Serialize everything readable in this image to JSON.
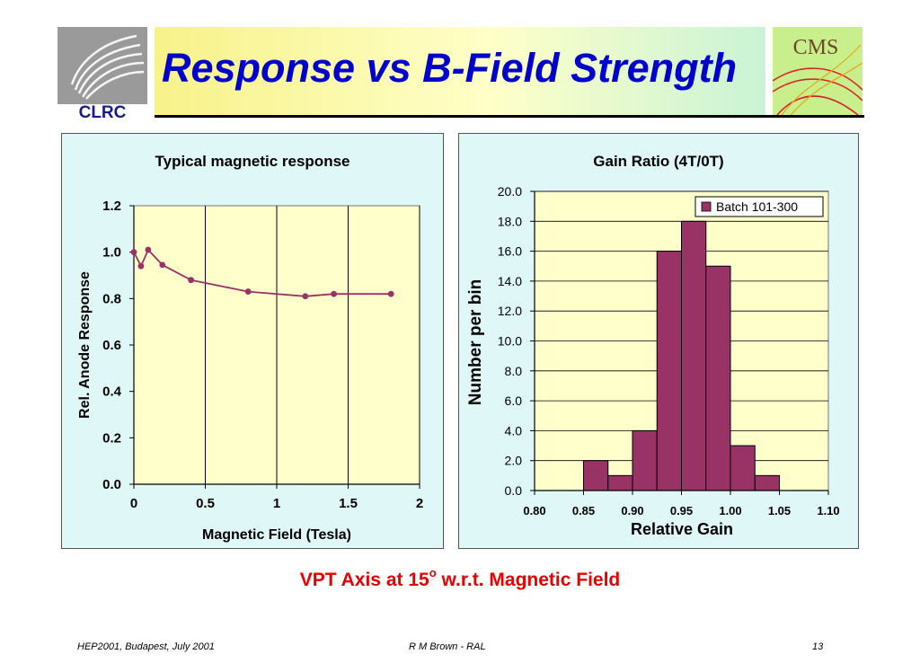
{
  "header": {
    "title": "Response vs B-Field Strength",
    "logo_left_text": "CLRC",
    "logo_right_text": "CMS",
    "colors": {
      "title": "#0000cc",
      "logo_left": "#1a1a8c",
      "logo_right_bg": "#c9ee8c"
    }
  },
  "caption": {
    "main": "VPT Axis at 15",
    "superscript": "o",
    "tail": " w.r.t. Magnetic Field"
  },
  "footer": {
    "left": "HEP2001, Budapest, July 2001",
    "center": "R M Brown - RAL",
    "right": "13"
  },
  "chart_data": [
    {
      "type": "line",
      "title": "Typical magnetic response",
      "xlabel": "Magnetic Field (Tesla)",
      "ylabel": "Rel. Anode Response",
      "x": [
        0,
        0.05,
        0.1,
        0.2,
        0.4,
        0.8,
        1.2,
        1.4,
        1.8
      ],
      "y": [
        1.0,
        0.94,
        1.01,
        0.945,
        0.88,
        0.83,
        0.81,
        0.82,
        0.82
      ],
      "xlim": [
        0,
        2
      ],
      "ylim": [
        0,
        1.2
      ],
      "x_ticks": [
        "0",
        "0.5",
        "1",
        "1.5",
        "2"
      ],
      "y_ticks": [
        "0.0",
        "0.2",
        "0.4",
        "0.6",
        "0.8",
        "1.0",
        "1.2"
      ],
      "grid": "vertical",
      "color": "#993366",
      "plot_bg": "#ffffcc"
    },
    {
      "type": "bar",
      "title": "Gain Ratio (4T/0T)",
      "xlabel": "Relative Gain",
      "ylabel": "Number per bin",
      "bin_edges": [
        0.8,
        0.825,
        0.85,
        0.875,
        0.9,
        0.925,
        0.95,
        0.975,
        1.0,
        1.025,
        1.05,
        1.075,
        1.1
      ],
      "values": [
        0,
        0,
        2,
        1,
        4,
        16,
        18,
        15,
        3,
        1,
        0,
        0
      ],
      "xlim": [
        0.8,
        1.1
      ],
      "ylim": [
        0,
        20
      ],
      "x_ticks": [
        "0.80",
        "0.85",
        "0.90",
        "0.95",
        "1.00",
        "1.05",
        "1.10"
      ],
      "y_ticks": [
        "0.0",
        "2.0",
        "4.0",
        "6.0",
        "8.0",
        "10.0",
        "12.0",
        "14.0",
        "16.0",
        "18.0",
        "20.0"
      ],
      "series": [
        {
          "name": "Batch 101-300"
        }
      ],
      "legend": "top-right",
      "grid": "horizontal",
      "color": "#993366",
      "plot_bg": "#ffffcc"
    }
  ]
}
